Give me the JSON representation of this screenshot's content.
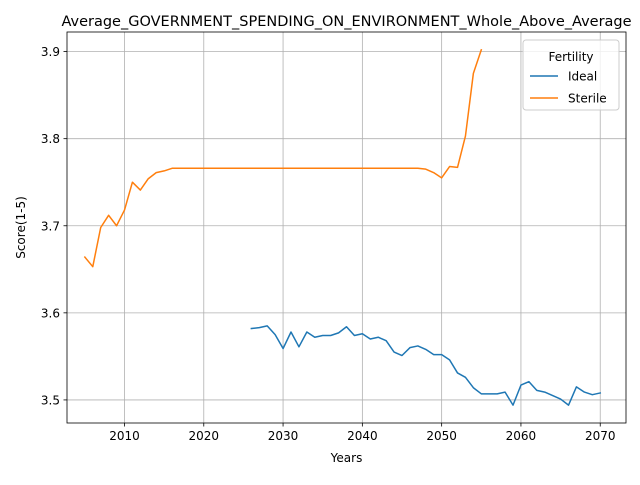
{
  "chart_data": {
    "type": "line",
    "title": "Average_GOVERNMENT_SPENDING_ON_ENVIRONMENT_Whole_Above_Average",
    "xlabel": "Years",
    "ylabel": "Score(1-5)",
    "xlim": [
      2002.75,
      2073.25
    ],
    "ylim": [
      3.4735,
      3.9225
    ],
    "xticks": [
      2010,
      2020,
      2030,
      2040,
      2050,
      2060,
      2070
    ],
    "yticks": [
      3.5,
      3.6,
      3.7,
      3.8,
      3.9
    ],
    "grid": true,
    "legend": {
      "title": "Fertility",
      "placement": "top-right"
    },
    "colors": {
      "Ideal": "#1f77b4",
      "Sterile": "#ff7f0e"
    },
    "series": [
      {
        "name": "Ideal",
        "x": [
          2026,
          2027,
          2028,
          2029,
          2030,
          2031,
          2032,
          2033,
          2034,
          2035,
          2036,
          2037,
          2038,
          2039,
          2040,
          2041,
          2042,
          2043,
          2044,
          2045,
          2046,
          2047,
          2048,
          2049,
          2050,
          2051,
          2052,
          2053,
          2054,
          2055,
          2056,
          2057,
          2058,
          2059,
          2060,
          2061,
          2062,
          2063,
          2064,
          2065,
          2066,
          2067,
          2068,
          2069,
          2070
        ],
        "y": [
          3.582,
          3.583,
          3.585,
          3.575,
          3.559,
          3.578,
          3.561,
          3.578,
          3.572,
          3.574,
          3.574,
          3.577,
          3.584,
          3.574,
          3.576,
          3.57,
          3.572,
          3.568,
          3.555,
          3.551,
          3.56,
          3.562,
          3.558,
          3.552,
          3.552,
          3.546,
          3.531,
          3.526,
          3.514,
          3.507,
          3.507,
          3.507,
          3.509,
          3.494,
          3.517,
          3.521,
          3.511,
          3.509,
          3.505,
          3.501,
          3.494,
          3.515,
          3.509,
          3.506,
          3.508
        ]
      },
      {
        "name": "Sterile",
        "x": [
          2005,
          2006,
          2007,
          2008,
          2009,
          2010,
          2011,
          2012,
          2013,
          2014,
          2015,
          2016,
          2017,
          2018,
          2019,
          2020,
          2021,
          2022,
          2023,
          2024,
          2025,
          2026,
          2027,
          2028,
          2029,
          2030,
          2031,
          2032,
          2033,
          2034,
          2035,
          2036,
          2037,
          2038,
          2039,
          2040,
          2041,
          2042,
          2043,
          2044,
          2045,
          2046,
          2047,
          2048,
          2049,
          2050,
          2051,
          2052,
          2053,
          2054,
          2055
        ],
        "y": [
          3.664,
          3.653,
          3.698,
          3.712,
          3.7,
          3.718,
          3.75,
          3.741,
          3.754,
          3.761,
          3.763,
          3.766,
          3.766,
          3.766,
          3.766,
          3.766,
          3.766,
          3.766,
          3.766,
          3.766,
          3.766,
          3.766,
          3.766,
          3.766,
          3.766,
          3.766,
          3.766,
          3.766,
          3.766,
          3.766,
          3.766,
          3.766,
          3.766,
          3.766,
          3.766,
          3.766,
          3.766,
          3.766,
          3.766,
          3.766,
          3.766,
          3.766,
          3.766,
          3.765,
          3.761,
          3.755,
          3.768,
          3.767,
          3.803,
          3.875,
          3.902
        ]
      }
    ]
  }
}
